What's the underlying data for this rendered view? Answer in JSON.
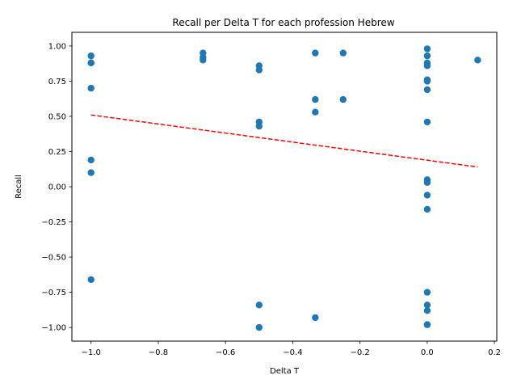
{
  "chart_data": {
    "type": "scatter",
    "title": "Recall per Delta T for each profession Hebrew",
    "xlabel": "Delta T",
    "ylabel": "Recall",
    "xlim": [
      -1.057,
      0.207
    ],
    "ylim": [
      -1.097,
      1.097
    ],
    "x_ticks": [
      -1.0,
      -0.8,
      -0.6,
      -0.4,
      -0.2,
      0.0,
      0.2
    ],
    "x_tick_labels": [
      "−1.0",
      "−0.8",
      "−0.6",
      "−0.4",
      "−0.2",
      "0.0",
      "0.2"
    ],
    "y_ticks": [
      -1.0,
      -0.75,
      -0.5,
      -0.25,
      0.0,
      0.25,
      0.5,
      0.75,
      1.0
    ],
    "y_tick_labels": [
      "−1.00",
      "−0.75",
      "−0.50",
      "−0.25",
      "0.00",
      "0.25",
      "0.50",
      "0.75",
      "1.00"
    ],
    "grid": false,
    "point_color": "#1f77b4",
    "trend_color": "#ff0000",
    "points": [
      {
        "x": -1.0,
        "y": 0.93
      },
      {
        "x": -1.0,
        "y": 0.88
      },
      {
        "x": -1.0,
        "y": 0.88
      },
      {
        "x": -1.0,
        "y": 0.7
      },
      {
        "x": -1.0,
        "y": 0.19
      },
      {
        "x": -1.0,
        "y": 0.1
      },
      {
        "x": -1.0,
        "y": -0.66
      },
      {
        "x": -0.667,
        "y": 0.95
      },
      {
        "x": -0.667,
        "y": 0.92
      },
      {
        "x": -0.667,
        "y": 0.9
      },
      {
        "x": -0.5,
        "y": 0.86
      },
      {
        "x": -0.5,
        "y": 0.83
      },
      {
        "x": -0.5,
        "y": 0.46
      },
      {
        "x": -0.5,
        "y": 0.43
      },
      {
        "x": -0.5,
        "y": -0.84
      },
      {
        "x": -0.5,
        "y": -1.0
      },
      {
        "x": -0.333,
        "y": 0.95
      },
      {
        "x": -0.333,
        "y": 0.62
      },
      {
        "x": -0.333,
        "y": 0.53
      },
      {
        "x": -0.333,
        "y": -0.93
      },
      {
        "x": -0.25,
        "y": 0.95
      },
      {
        "x": -0.25,
        "y": 0.62
      },
      {
        "x": 0.0,
        "y": 0.98
      },
      {
        "x": 0.0,
        "y": 0.93
      },
      {
        "x": 0.0,
        "y": 0.88
      },
      {
        "x": 0.0,
        "y": 0.86
      },
      {
        "x": 0.0,
        "y": 0.76
      },
      {
        "x": 0.0,
        "y": 0.75
      },
      {
        "x": 0.0,
        "y": 0.69
      },
      {
        "x": 0.0,
        "y": 0.46
      },
      {
        "x": 0.0,
        "y": 0.05
      },
      {
        "x": 0.0,
        "y": 0.03
      },
      {
        "x": 0.0,
        "y": -0.06
      },
      {
        "x": 0.0,
        "y": -0.16
      },
      {
        "x": 0.0,
        "y": -0.75
      },
      {
        "x": 0.0,
        "y": -0.84
      },
      {
        "x": 0.0,
        "y": -0.88
      },
      {
        "x": 0.0,
        "y": -0.98
      },
      {
        "x": 0.0,
        "y": -0.98
      },
      {
        "x": 0.15,
        "y": 0.9
      }
    ],
    "trend_line": {
      "x": [
        -1.0,
        0.15
      ],
      "y": [
        0.51,
        0.14
      ],
      "style": "dashed"
    }
  }
}
